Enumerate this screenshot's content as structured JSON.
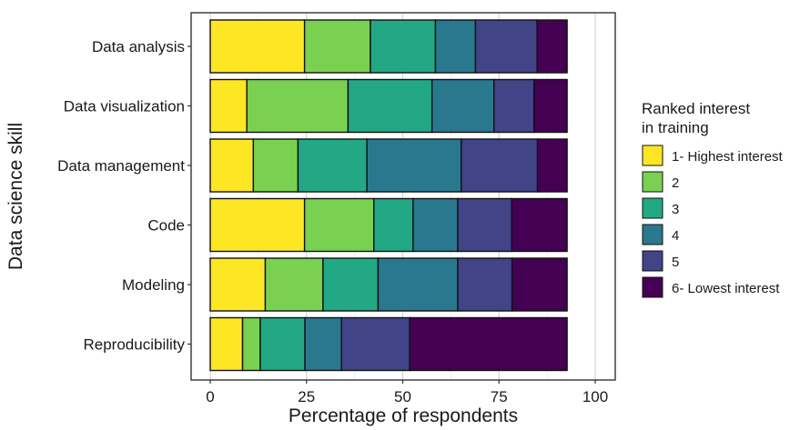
{
  "chart_data": {
    "type": "bar",
    "orientation": "horizontal",
    "stacked": true,
    "xlabel": "Percentage of respondents",
    "ylabel": "Data science skill",
    "xlim": [
      0,
      100
    ],
    "xticks": [
      0,
      25,
      50,
      75,
      100
    ],
    "grid": true,
    "legend_position": "right",
    "categories": [
      "Data analysis",
      "Data visualization",
      "Data management",
      "Code",
      "Modeling",
      "Reproducibility"
    ],
    "legend_title": [
      "Ranked interest",
      "in training"
    ],
    "series": [
      {
        "name": "1- Highest interest",
        "color": "#FDE725",
        "values": [
          24.5,
          9.5,
          11.2,
          24.5,
          14.3,
          8.4
        ]
      },
      {
        "name": "2",
        "color": "#7AD151",
        "values": [
          17.1,
          26.3,
          11.6,
          18.0,
          15.0,
          4.6
        ]
      },
      {
        "name": "3",
        "color": "#22A884",
        "values": [
          16.9,
          21.8,
          17.9,
          10.2,
          14.3,
          11.6
        ]
      },
      {
        "name": "4",
        "color": "#2A788E",
        "values": [
          10.4,
          16.1,
          24.5,
          11.6,
          20.7,
          9.5
        ]
      },
      {
        "name": "5",
        "color": "#414487",
        "values": [
          16.0,
          10.4,
          19.8,
          14.0,
          14.1,
          17.7
        ]
      },
      {
        "name": "6- Lowest interest",
        "color": "#440154",
        "values": [
          7.8,
          8.6,
          7.7,
          14.4,
          14.3,
          40.9
        ]
      }
    ]
  }
}
